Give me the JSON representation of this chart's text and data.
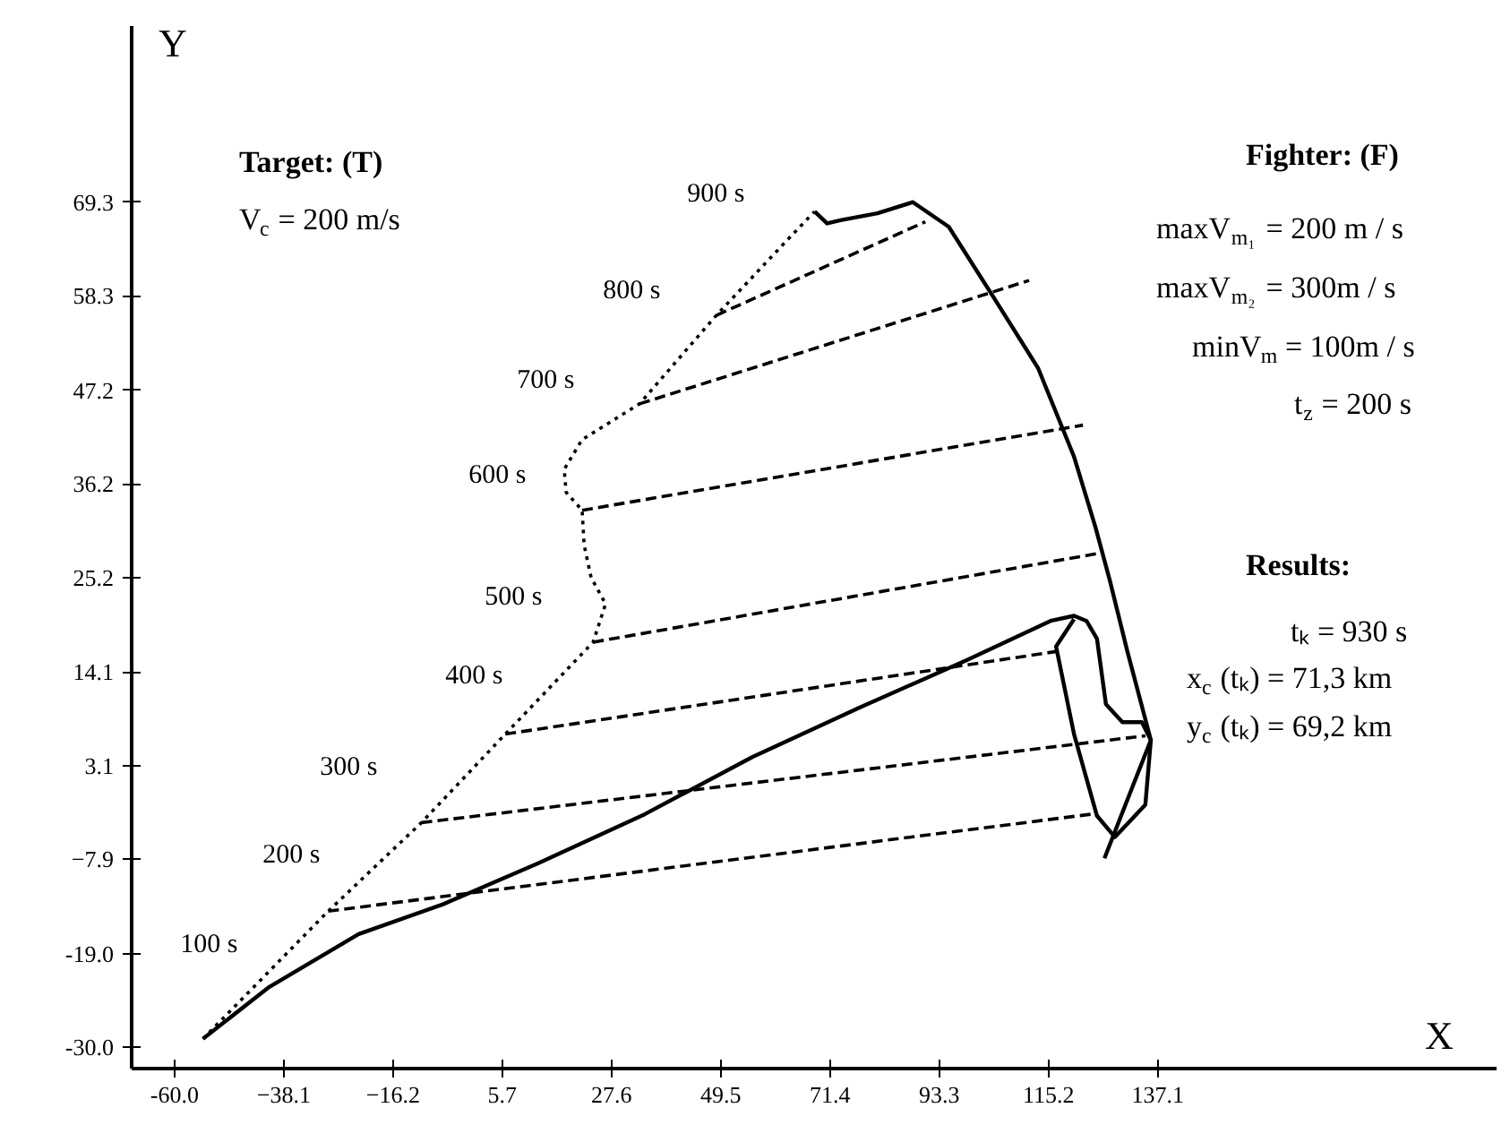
{
  "chart_data": {
    "type": "line",
    "xlabel": "X",
    "ylabel": "Y",
    "xlim": [
      -68.6,
      205
    ],
    "ylim": [
      -32.5,
      90
    ],
    "xticks": [
      {
        "value": -60,
        "label": "-60.0"
      },
      -38.1,
      -16.2,
      5.7,
      27.6,
      49.5,
      71.4,
      93.3,
      115.2,
      137.1
    ],
    "yticks": [
      {
        "value": -30,
        "label": "-30.0"
      },
      {
        "value": -19,
        "label": "-19.0"
      },
      -7.9,
      3.1,
      14.1,
      25.2,
      36.2,
      47.2,
      58.3,
      69.3
    ],
    "grid": false,
    "marker": "none",
    "series": [
      {
        "color": "#000000",
        "line_style": "dotted",
        "x": [
          -54.3,
          -29.2,
          -10.5,
          6.3,
          23.9,
          26.4,
          23.5,
          22.1,
          21.7,
          18.5,
          18.1,
          21.7,
          33.2,
          48.6,
          62.9,
          68.3
        ],
        "values": [
          -29.0,
          -14.0,
          -3.6,
          6.8,
          17.6,
          22.1,
          25.2,
          29.0,
          33.1,
          35.2,
          37.9,
          41.4,
          45.6,
          56.0,
          64.9,
          68.2
        ]
      },
      {
        "color": "#000000",
        "line_style": "solid",
        "x": [
          -54.3,
          -41.0,
          -23.1,
          -6.2,
          12.8,
          34.3,
          55.8,
          77.3,
          98.8,
          115.6,
          120.3,
          122.8,
          124.9,
          126.7,
          130.0,
          133.9,
          135.7,
          134.6,
          128.5,
          124.9,
          120.3,
          116.7,
          120.3
        ],
        "values": [
          -29.0,
          -22.9,
          -16.7,
          -13.2,
          -8.4,
          -2.6,
          4.1,
          9.9,
          15.5,
          20.1,
          20.7,
          20.1,
          18.0,
          10.3,
          8.2,
          8.2,
          6.1,
          -1.5,
          -5.3,
          -2.8,
          6.8,
          17.1,
          20.3
        ]
      },
      {
        "color": "#000000",
        "line_style": "solid",
        "x": [
          126.4,
          135.7,
          131.0,
          127.5,
          124.6,
          120.3,
          113.1,
          104.2,
          95.2,
          88.0,
          80.9,
          73.7,
          70.8,
          68.3
        ],
        "values": [
          -7.8,
          6.1,
          16.5,
          24.8,
          31.1,
          39.4,
          49.8,
          58.1,
          66.4,
          69.3,
          68.0,
          67.2,
          66.8,
          68.2
        ]
      },
      {
        "color": "#000000",
        "line_style": "dashed",
        "x": [
          -29.2,
          123.9
        ],
        "values": [
          -14.0,
          -2.6
        ]
      },
      {
        "color": "#000000",
        "line_style": "dashed",
        "x": [
          -10.5,
          134.6
        ],
        "values": [
          -3.6,
          6.6
        ]
      },
      {
        "color": "#000000",
        "line_style": "dashed",
        "x": [
          6.3,
          116.7
        ],
        "values": [
          6.8,
          16.5
        ]
      },
      {
        "color": "#000000",
        "line_style": "dashed",
        "x": [
          23.9,
          124.9
        ],
        "values": [
          17.6,
          28.0
        ]
      },
      {
        "color": "#000000",
        "line_style": "dashed",
        "x": [
          21.7,
          122.1
        ],
        "values": [
          33.1,
          43.1
        ]
      },
      {
        "color": "#000000",
        "line_style": "dashed",
        "x": [
          33.2,
          111.3
        ],
        "values": [
          45.6,
          60.1
        ]
      },
      {
        "color": "#000000",
        "line_style": "dashed",
        "x": [
          48.6,
          90.5
        ],
        "values": [
          56.0,
          67.0
        ]
      }
    ],
    "annotations": [
      "100 s",
      "200 s",
      "300 s",
      "400 s",
      "500 s",
      "600 s",
      "700 s",
      "800 s",
      "900 s",
      "Target: (T)",
      "V$_{c}$ = 200 m/s",
      "Fighter: (F)",
      "maxV$_{m₁}$ = 200 m / s",
      "maxV$_{m₂}$ = 300m / s",
      "minV$_{m}$ = 100m / s",
      "t$_{z}$ = 200 s",
      "Results:",
      "tₖ = 930 s",
      "x$_{c}$(tₖ) = 71,3 km",
      "y$_{c}$(tₖ) = 69,2 km"
    ]
  }
}
